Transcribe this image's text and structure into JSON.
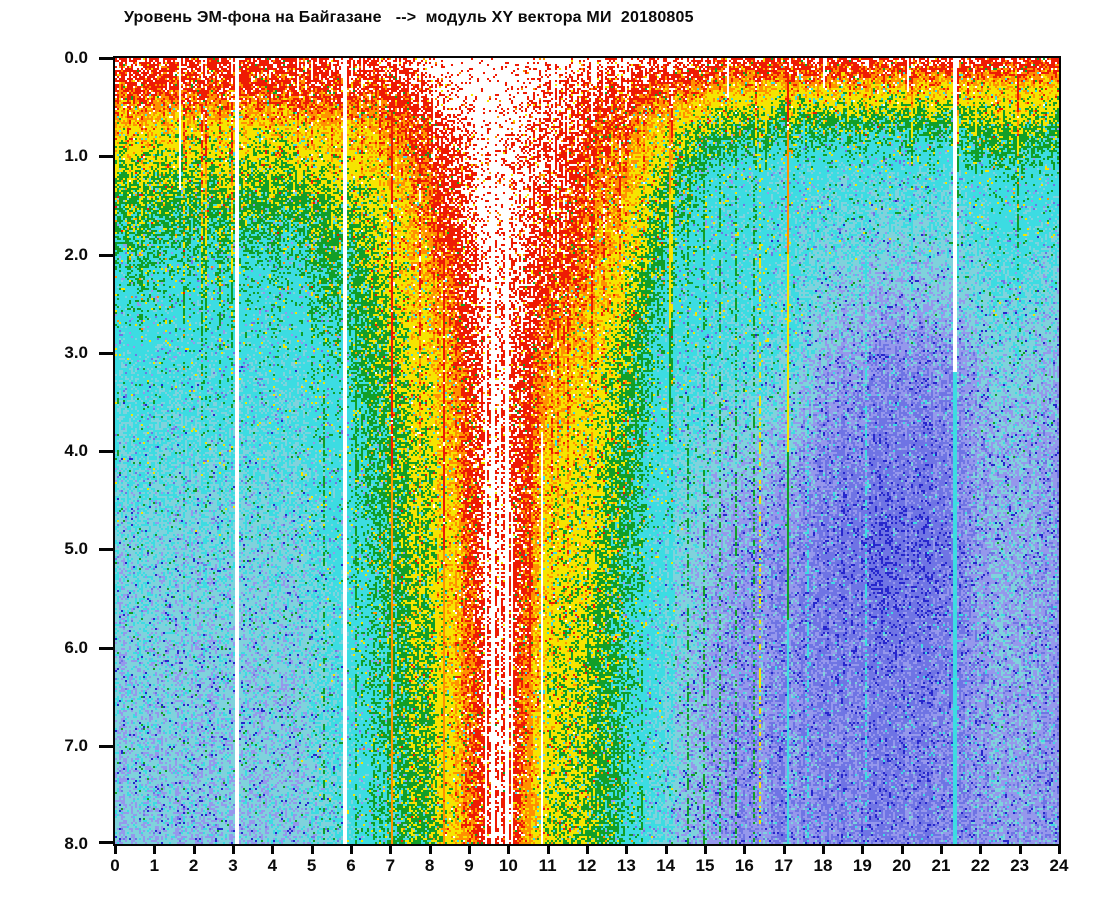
{
  "chart_data": {
    "type": "heatmap",
    "title": "Уровень ЭМ-фона на Байгазане   -->  модуль XY вектора МИ  20180805",
    "x_axis": {
      "label_hours": [
        "0",
        "1",
        "2",
        "3",
        "4",
        "5",
        "6",
        "7",
        "8",
        "9",
        "10",
        "11",
        "12",
        "13",
        "14",
        "15",
        "16",
        "17",
        "18",
        "19",
        "20",
        "21",
        "22",
        "23",
        "24"
      ],
      "min": 0,
      "max": 24
    },
    "y_axis": {
      "labels": [
        "0.0",
        "1.0",
        "2.0",
        "3.0",
        "4.0",
        "5.0",
        "6.0",
        "7.0",
        "8.0"
      ],
      "min": 0,
      "max": 8,
      "inverted": true
    },
    "palette": {
      "white": "#ffffff",
      "red": "#ee1b04",
      "orange": "#ff9100",
      "yellow": "#f6e400",
      "green": "#129f28",
      "cyan": "#3cdce2",
      "palecyan": "#7fd2dc",
      "periwinkle": "#9598ec",
      "blue": "#6f74e4",
      "darkblue": "#2727cd"
    },
    "levels": [
      [
        9.3,
        "offscale"
      ],
      [
        8.4,
        "red"
      ],
      [
        7.7,
        "orange"
      ],
      [
        6.6,
        "yellow"
      ],
      [
        5.65,
        "green"
      ],
      [
        4.25,
        "cyan"
      ],
      [
        3.3,
        "palecyan"
      ],
      [
        2.55,
        "periwinkle"
      ],
      [
        1.55,
        "blue"
      ],
      [
        -99,
        "darkblue"
      ]
    ],
    "grid": {
      "hour_step": 0.5,
      "depths": [
        0,
        0.3,
        0.7,
        1.2,
        2,
        3,
        4,
        5,
        6,
        7,
        8
      ],
      "values": [
        [
          9.2,
          9.2,
          9.2,
          9.2,
          9.2,
          9.2,
          9.2,
          9.2,
          9.2,
          9.2,
          9.2,
          9.3,
          9.3,
          9.4,
          9.5,
          9.8,
          10.2,
          10.6,
          11.0,
          11.3,
          11.2,
          10.8,
          10.4,
          10.1,
          10.0,
          9.9,
          9.9,
          9.8,
          9.8,
          9.6,
          9.5,
          9.4,
          9.4,
          9.4,
          9.4,
          9.4,
          9.4,
          9.4,
          9.4,
          9.4,
          9.4,
          9.4,
          9.4,
          9.4,
          9.3,
          9.2,
          9.2,
          9.2,
          9.1
        ],
        [
          8.8,
          8.8,
          8.8,
          8.8,
          8.8,
          8.8,
          8.7,
          8.7,
          8.8,
          8.8,
          8.8,
          8.8,
          8.9,
          8.9,
          9.0,
          9.3,
          9.7,
          10.1,
          10.6,
          11.0,
          10.9,
          10.4,
          9.9,
          9.5,
          9.2,
          9.0,
          8.9,
          8.7,
          8.5,
          8.2,
          8.0,
          7.8,
          7.7,
          7.7,
          7.6,
          7.6,
          7.6,
          7.6,
          7.6,
          7.6,
          7.6,
          7.6,
          7.6,
          7.6,
          7.5,
          7.5,
          7.6,
          7.5,
          7.4
        ],
        [
          7.4,
          7.4,
          7.4,
          7.4,
          7.4,
          7.4,
          7.4,
          7.4,
          7.4,
          7.4,
          7.5,
          7.5,
          7.6,
          7.7,
          8.1,
          8.5,
          9.0,
          9.4,
          9.9,
          10.6,
          10.5,
          10.0,
          9.5,
          9.1,
          8.8,
          8.5,
          8.2,
          7.8,
          7.3,
          6.8,
          6.4,
          6.2,
          6.1,
          6.0,
          6.0,
          5.9,
          5.9,
          5.8,
          5.8,
          5.8,
          5.8,
          5.8,
          5.9,
          6.0,
          6.3,
          6.5,
          6.6,
          6.4,
          6.2
        ],
        [
          6.5,
          6.5,
          6.5,
          6.5,
          6.5,
          6.5,
          6.5,
          6.5,
          6.5,
          6.5,
          6.6,
          6.7,
          6.9,
          7.1,
          7.5,
          8.0,
          8.6,
          9.1,
          9.7,
          10.4,
          10.3,
          9.8,
          9.3,
          8.9,
          8.5,
          8.1,
          7.7,
          7.1,
          6.4,
          5.7,
          5.1,
          4.8,
          4.7,
          4.7,
          4.6,
          4.6,
          4.6,
          4.5,
          4.5,
          4.5,
          4.5,
          4.5,
          4.6,
          4.7,
          5.0,
          5.2,
          5.3,
          5.1,
          4.9
        ],
        [
          5.5,
          5.5,
          5.5,
          5.5,
          5.5,
          5.5,
          5.5,
          5.5,
          5.5,
          5.5,
          5.6,
          5.8,
          6.0,
          6.4,
          6.9,
          7.5,
          8.0,
          8.6,
          9.3,
          10.1,
          10.0,
          9.5,
          9.0,
          8.6,
          8.2,
          7.7,
          7.1,
          6.4,
          5.6,
          5.0,
          4.8,
          4.7,
          4.7,
          4.7,
          4.6,
          4.2,
          4.2,
          4.0,
          3.9,
          3.8,
          3.8,
          3.8,
          3.9,
          4.0,
          4.4,
          4.6,
          4.6,
          4.4,
          4.1
        ],
        [
          4.7,
          4.7,
          4.7,
          4.7,
          4.7,
          4.7,
          4.7,
          4.7,
          4.7,
          4.8,
          4.9,
          5.0,
          5.6,
          6.0,
          6.4,
          7.0,
          7.3,
          8.0,
          8.9,
          9.8,
          9.8,
          9.0,
          8.2,
          7.7,
          7.4,
          6.9,
          6.3,
          5.6,
          4.9,
          4.6,
          4.5,
          4.4,
          4.4,
          4.4,
          4.3,
          3.9,
          3.4,
          3.1,
          2.9,
          2.8,
          2.8,
          2.8,
          2.9,
          3.1,
          3.6,
          3.8,
          3.8,
          3.6,
          3.4
        ],
        [
          4.3,
          4.3,
          4.3,
          4.3,
          4.3,
          4.3,
          4.3,
          4.3,
          4.3,
          4.4,
          4.5,
          4.6,
          5.2,
          5.6,
          6.0,
          6.6,
          6.9,
          7.6,
          8.6,
          9.7,
          9.7,
          8.6,
          7.6,
          7.2,
          7.0,
          6.6,
          6.0,
          5.3,
          4.6,
          4.1,
          3.9,
          3.7,
          3.6,
          3.5,
          3.3,
          3.0,
          2.7,
          2.5,
          2.4,
          2.3,
          2.3,
          2.3,
          2.4,
          2.6,
          3.1,
          3.3,
          3.3,
          3.1,
          2.9
        ],
        [
          3.9,
          3.9,
          3.9,
          3.9,
          3.9,
          3.9,
          3.9,
          3.9,
          4.0,
          4.0,
          4.2,
          4.4,
          5.0,
          5.5,
          5.9,
          6.5,
          6.7,
          7.4,
          8.4,
          9.6,
          9.6,
          8.4,
          7.3,
          7.0,
          6.8,
          6.3,
          5.7,
          5.0,
          4.4,
          3.8,
          3.4,
          3.1,
          2.9,
          2.8,
          2.7,
          2.5,
          2.3,
          2.1,
          2.0,
          1.9,
          1.9,
          2.0,
          2.2,
          2.5,
          3.1,
          3.3,
          3.3,
          3.1,
          2.9
        ],
        [
          3.7,
          3.7,
          3.7,
          3.7,
          3.7,
          3.7,
          3.7,
          3.7,
          3.8,
          3.8,
          4.0,
          4.2,
          4.8,
          5.3,
          5.8,
          6.4,
          6.6,
          7.3,
          8.3,
          9.5,
          9.5,
          8.2,
          7.1,
          6.8,
          6.6,
          6.1,
          5.5,
          4.8,
          4.2,
          3.6,
          3.2,
          2.9,
          2.8,
          2.7,
          2.6,
          2.5,
          2.4,
          2.3,
          2.2,
          2.2,
          2.2,
          2.3,
          2.4,
          2.6,
          3.0,
          3.2,
          3.2,
          3.0,
          2.8
        ],
        [
          3.6,
          3.6,
          3.6,
          3.6,
          3.6,
          3.6,
          3.6,
          3.6,
          3.7,
          3.7,
          3.9,
          4.1,
          4.7,
          5.2,
          5.7,
          6.3,
          6.5,
          7.2,
          8.2,
          9.4,
          9.4,
          8.0,
          7.0,
          6.7,
          6.5,
          6.0,
          5.4,
          4.7,
          4.1,
          3.5,
          3.1,
          2.9,
          2.8,
          2.7,
          2.7,
          2.6,
          2.5,
          2.5,
          2.4,
          2.4,
          2.4,
          2.5,
          2.6,
          2.7,
          3.0,
          3.1,
          3.1,
          3.0,
          2.8
        ],
        [
          3.5,
          3.5,
          3.5,
          3.5,
          3.5,
          3.5,
          3.5,
          3.5,
          3.6,
          3.6,
          3.8,
          4.0,
          4.6,
          5.1,
          5.6,
          6.2,
          6.4,
          7.1,
          8.1,
          9.3,
          9.3,
          7.9,
          6.9,
          6.6,
          6.4,
          5.9,
          5.3,
          4.6,
          4.0,
          3.4,
          3.0,
          2.8,
          2.7,
          2.7,
          2.6,
          2.6,
          2.5,
          2.5,
          2.4,
          2.4,
          2.4,
          2.5,
          2.6,
          2.7,
          2.9,
          3.0,
          3.0,
          2.9,
          2.8
        ]
      ]
    },
    "data_gaps": [
      {
        "h": 1.63,
        "d0": 0,
        "d1": 1.35,
        "w": 1,
        "color": "white"
      },
      {
        "h": 3.05,
        "d0": 0,
        "d1": 8,
        "w": 2,
        "color": "white"
      },
      {
        "h": 5.78,
        "d0": 0,
        "d1": 8,
        "w": 2,
        "color": "white"
      },
      {
        "h": 9.42,
        "d0": 2.1,
        "d1": 8,
        "w": 1,
        "color": "white"
      },
      {
        "h": 9.58,
        "d0": 0.2,
        "d1": 8,
        "w": 2,
        "color": "white"
      },
      {
        "h": 9.76,
        "d0": 3.2,
        "d1": 8,
        "w": 1,
        "color": "white"
      },
      {
        "h": 9.93,
        "d0": 1.1,
        "d1": 8,
        "w": 2,
        "color": "white"
      },
      {
        "h": 10.08,
        "d0": 4.6,
        "d1": 8,
        "w": 1,
        "color": "white"
      },
      {
        "h": 10.85,
        "d0": 3.8,
        "d1": 8,
        "w": 1,
        "color": "white"
      },
      {
        "h": 15.58,
        "d0": 0,
        "d1": 0.4,
        "w": 1,
        "color": "white"
      },
      {
        "h": 18.02,
        "d0": 0,
        "d1": 0.3,
        "w": 1,
        "color": "white"
      },
      {
        "h": 20.12,
        "d0": 0,
        "d1": 0.35,
        "w": 1,
        "color": "white"
      },
      {
        "h": 21.28,
        "d0": 0,
        "d1": 3.2,
        "w": 2,
        "color": "white"
      },
      {
        "h": 21.28,
        "d0": 3.2,
        "d1": 8,
        "w": 2,
        "color": "cyan"
      }
    ],
    "line_events": [
      {
        "h": 5.28,
        "T": 6.1,
        "f": 0.03,
        "dotted": 1
      },
      {
        "h": 6.12,
        "T": 6.5,
        "f": 0.04,
        "dotted": 1
      },
      {
        "h": 6.55,
        "T": 6.3,
        "f": 0.03,
        "dotted": 1
      },
      {
        "h": 7.02,
        "T": 8.9,
        "f": 0.12,
        "dotted": 0
      },
      {
        "h": 8.32,
        "T": 8.9,
        "f": 0.1,
        "dotted": 0
      },
      {
        "h": 8.62,
        "T": 8.7,
        "f": 0.25,
        "dotted": 0
      },
      {
        "h": 10.55,
        "T": 8.9,
        "f": 0.08,
        "dotted": 0
      },
      {
        "h": 10.92,
        "T": 8.8,
        "f": 0.3,
        "dotted": 0
      },
      {
        "h": 11.38,
        "T": 8.7,
        "f": 0.5,
        "dotted": 0
      },
      {
        "h": 12.32,
        "T": 6.9,
        "f": 0.06,
        "dotted": 1
      },
      {
        "h": 12.85,
        "T": 6.6,
        "f": 0.05,
        "dotted": 1
      },
      {
        "h": 13.38,
        "T": 6.4,
        "f": 0.04,
        "dotted": 1
      },
      {
        "h": 14.07,
        "T": 8.8,
        "f": 0.8,
        "dotted": 0
      },
      {
        "h": 14.52,
        "T": 6.1,
        "f": 0.04,
        "dotted": 1
      },
      {
        "h": 14.93,
        "T": 6.0,
        "f": 0.04,
        "dotted": 1
      },
      {
        "h": 15.34,
        "T": 6.0,
        "f": 0.04,
        "dotted": 1
      },
      {
        "h": 15.78,
        "T": 6.0,
        "f": 0.04,
        "dotted": 1
      },
      {
        "h": 16.22,
        "T": 6.0,
        "f": 0.04,
        "dotted": 1
      },
      {
        "h": 16.35,
        "T": 7.1,
        "f": 0.05,
        "dotted": 1
      },
      {
        "h": 16.55,
        "T": 8.6,
        "f": 2.6,
        "dotted": 0
      },
      {
        "h": 17.08,
        "T": 8.8,
        "f": 0.55,
        "dotted": 0
      },
      {
        "h": 17.6,
        "T": 5.6,
        "f": 0.04,
        "dotted": 1
      },
      {
        "h": 19.05,
        "T": 5.2,
        "f": 0.0,
        "dotted": 1
      },
      {
        "h": 21.38,
        "T": 8.6,
        "f": 0.75,
        "dotted": 0
      },
      {
        "h": 21.88,
        "T": 8.5,
        "f": 2.4,
        "dotted": 0
      }
    ],
    "noise": {
      "jitter": 1.05,
      "col_jitter": 0.55,
      "dark_spike_p": 0.045,
      "dark_spike": -2.3,
      "bright_spike_p": 0.04,
      "bright_spike": 1.9,
      "red_hole_p": 0.05
    },
    "streaks": {
      "prob_left": 0.2,
      "prob_mid": 0.22,
      "prob_right": 0.06,
      "s_min": 0.5,
      "s_span": 1.5
    }
  }
}
